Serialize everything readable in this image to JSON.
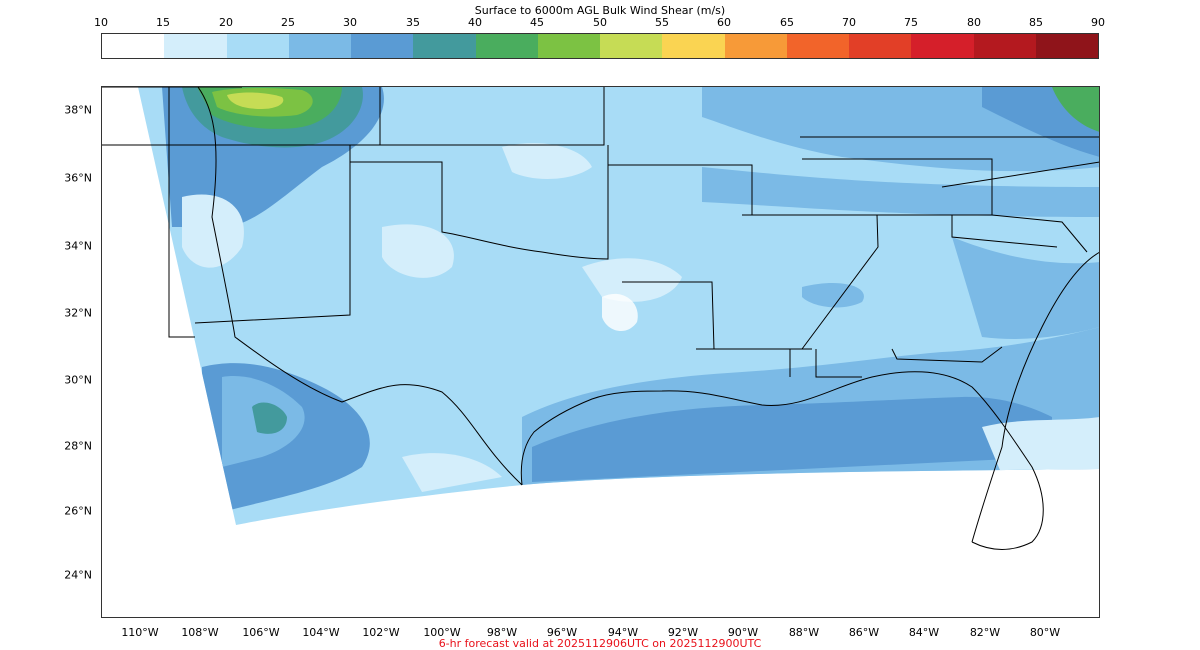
{
  "title": "Surface to 6000m AGL Bulk Wind Shear (m/s)",
  "colorbar": {
    "ticks": [
      "10",
      "15",
      "20",
      "25",
      "30",
      "35",
      "40",
      "45",
      "50",
      "55",
      "60",
      "65",
      "70",
      "75",
      "80",
      "85",
      "90"
    ],
    "colors": [
      "#ffffff",
      "#d4eefb",
      "#a8dcf6",
      "#7bbae6",
      "#5a9bd4",
      "#439a9d",
      "#4aad5e",
      "#7cc243",
      "#c6dc55",
      "#fad452",
      "#f79a38",
      "#f2642a",
      "#e23f27",
      "#d51f2a",
      "#b4191f",
      "#8f141a"
    ]
  },
  "map": {
    "lat_labels": [
      "38°N",
      "36°N",
      "34°N",
      "32°N",
      "30°N",
      "28°N",
      "26°N",
      "24°N"
    ],
    "lon_labels": [
      "110°W",
      "108°W",
      "106°W",
      "104°W",
      "102°W",
      "100°W",
      "98°W",
      "96°W",
      "94°W",
      "92°W",
      "90°W",
      "88°W",
      "86°W",
      "84°W",
      "82°W",
      "80°W"
    ]
  },
  "footer": "6-hr forecast valid at 2025112906UTC on 2025112900UTC"
}
